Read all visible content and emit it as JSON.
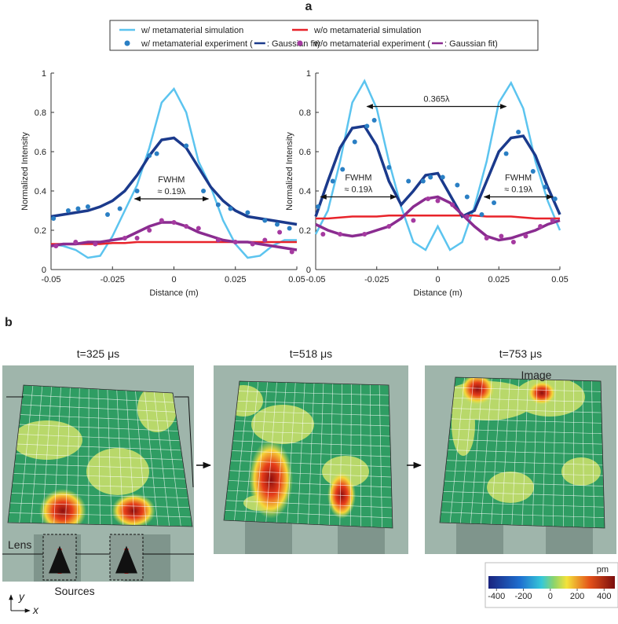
{
  "panel_a_label": "a",
  "legend": [
    {
      "label": "w/ metamaterial simulation",
      "color": "#5cc4ef",
      "marker": "line"
    },
    {
      "label": "w/o metamaterial simulation",
      "color": "#e8232a",
      "marker": "line"
    },
    {
      "label": "w/ metamaterial experiment (",
      "suffix": ": Gaussian fit)",
      "color": "#2a7fc4",
      "fit_color": "#1b3a8c",
      "marker": "dot"
    },
    {
      "label": "w/o metamaterial experiment (",
      "suffix": ": Gaussian fit)",
      "color": "#a53aa0",
      "fit_color": "#8a2c90",
      "marker": "dot"
    }
  ],
  "chart_data": [
    {
      "type": "line",
      "xlabel": "Distance (m)",
      "ylabel": "Normalized Intensity",
      "xlim": [
        -0.05,
        0.05
      ],
      "ylim": [
        0,
        1
      ],
      "xticks": [
        -0.05,
        -0.025,
        0,
        0.025,
        0.05
      ],
      "yticks": [
        0,
        0.2,
        0.4,
        0.6,
        0.8,
        1
      ],
      "x": [
        -0.05,
        -0.045,
        -0.04,
        -0.035,
        -0.03,
        -0.025,
        -0.02,
        -0.015,
        -0.01,
        -0.005,
        0,
        0.005,
        0.01,
        0.015,
        0.02,
        0.025,
        0.03,
        0.035,
        0.04,
        0.045,
        0.05
      ],
      "series": [
        {
          "type": "line",
          "color": "#5cc4ef",
          "values": [
            0.13,
            0.12,
            0.1,
            0.06,
            0.07,
            0.17,
            0.3,
            0.43,
            0.62,
            0.85,
            0.92,
            0.8,
            0.55,
            0.42,
            0.25,
            0.13,
            0.06,
            0.07,
            0.12,
            0.15,
            0.15
          ]
        },
        {
          "type": "line",
          "color": "#e8232a",
          "values": [
            0.13,
            0.13,
            0.13,
            0.13,
            0.13,
            0.135,
            0.135,
            0.14,
            0.14,
            0.14,
            0.14,
            0.14,
            0.14,
            0.14,
            0.14,
            0.14,
            0.14,
            0.14,
            0.14,
            0.14,
            0.14
          ]
        },
        {
          "type": "line",
          "color": "#1b3a8c",
          "values": [
            0.27,
            0.28,
            0.29,
            0.3,
            0.32,
            0.35,
            0.4,
            0.48,
            0.58,
            0.66,
            0.67,
            0.62,
            0.52,
            0.42,
            0.35,
            0.3,
            0.27,
            0.26,
            0.25,
            0.24,
            0.23
          ]
        },
        {
          "type": "line",
          "color": "#8a2c90",
          "values": [
            0.12,
            0.13,
            0.13,
            0.14,
            0.14,
            0.15,
            0.16,
            0.19,
            0.22,
            0.24,
            0.24,
            0.22,
            0.19,
            0.17,
            0.15,
            0.14,
            0.14,
            0.13,
            0.12,
            0.11,
            0.1
          ]
        },
        {
          "type": "scatter",
          "color": "#2a7fc4",
          "x": [
            -0.049,
            -0.043,
            -0.039,
            -0.035,
            -0.027,
            -0.022,
            -0.015,
            -0.01,
            -0.007,
            0.005,
            0.012,
            0.018,
            0.023,
            0.03,
            0.037,
            0.042,
            0.047
          ],
          "values": [
            0.26,
            0.3,
            0.31,
            0.32,
            0.28,
            0.31,
            0.4,
            0.58,
            0.59,
            0.63,
            0.4,
            0.33,
            0.31,
            0.29,
            0.25,
            0.23,
            0.21
          ]
        },
        {
          "type": "scatter",
          "color": "#a53aa0",
          "x": [
            -0.048,
            -0.04,
            -0.032,
            -0.02,
            -0.015,
            -0.01,
            -0.005,
            0,
            0.005,
            0.01,
            0.018,
            0.025,
            0.032,
            0.037,
            0.043,
            0.048
          ],
          "values": [
            0.12,
            0.14,
            0.13,
            0.16,
            0.16,
            0.2,
            0.25,
            0.24,
            0.22,
            0.21,
            0.15,
            0.14,
            0.13,
            0.15,
            0.19,
            0.09
          ]
        }
      ],
      "arrows": [
        {
          "x": [
            -0.016,
            0.014
          ],
          "y": 0.36,
          "label": [
            "FWHM",
            "≈ 0.19λ"
          ]
        }
      ]
    },
    {
      "type": "line",
      "xlabel": "Distance (m)",
      "ylabel": "Normalized Intensity",
      "xlim": [
        -0.05,
        0.05
      ],
      "ylim": [
        0,
        1
      ],
      "xticks": [
        -0.05,
        -0.025,
        0,
        0.025,
        0.05
      ],
      "yticks": [
        0,
        0.2,
        0.4,
        0.6,
        0.8,
        1
      ],
      "x": [
        -0.05,
        -0.045,
        -0.04,
        -0.035,
        -0.03,
        -0.025,
        -0.02,
        -0.015,
        -0.01,
        -0.005,
        0,
        0.005,
        0.01,
        0.015,
        0.02,
        0.025,
        0.03,
        0.035,
        0.04,
        0.045,
        0.05
      ],
      "series": [
        {
          "type": "line",
          "color": "#5cc4ef",
          "values": [
            0.18,
            0.3,
            0.55,
            0.85,
            0.96,
            0.82,
            0.55,
            0.32,
            0.14,
            0.1,
            0.22,
            0.1,
            0.14,
            0.32,
            0.55,
            0.85,
            0.95,
            0.82,
            0.55,
            0.35,
            0.2
          ]
        },
        {
          "type": "line",
          "color": "#e8232a",
          "values": [
            0.26,
            0.26,
            0.265,
            0.27,
            0.27,
            0.27,
            0.275,
            0.275,
            0.275,
            0.275,
            0.275,
            0.275,
            0.275,
            0.275,
            0.27,
            0.27,
            0.27,
            0.265,
            0.26,
            0.26,
            0.26
          ]
        },
        {
          "type": "line",
          "color": "#1b3a8c",
          "values": [
            0.27,
            0.45,
            0.62,
            0.72,
            0.73,
            0.63,
            0.45,
            0.33,
            0.4,
            0.48,
            0.49,
            0.38,
            0.27,
            0.3,
            0.45,
            0.6,
            0.67,
            0.68,
            0.58,
            0.42,
            0.28
          ]
        },
        {
          "type": "line",
          "color": "#8a2c90",
          "values": [
            0.23,
            0.2,
            0.18,
            0.17,
            0.18,
            0.2,
            0.22,
            0.26,
            0.32,
            0.36,
            0.37,
            0.34,
            0.28,
            0.22,
            0.17,
            0.15,
            0.16,
            0.18,
            0.2,
            0.23,
            0.25
          ]
        },
        {
          "type": "scatter",
          "color": "#2a7fc4",
          "x": [
            -0.049,
            -0.043,
            -0.039,
            -0.034,
            -0.029,
            -0.026,
            -0.02,
            -0.012,
            -0.006,
            -0.003,
            0.002,
            0.008,
            0.012,
            0.018,
            0.023,
            0.028,
            0.033,
            0.039,
            0.044,
            0.048
          ],
          "values": [
            0.32,
            0.45,
            0.51,
            0.65,
            0.73,
            0.76,
            0.52,
            0.45,
            0.45,
            0.47,
            0.47,
            0.43,
            0.37,
            0.28,
            0.34,
            0.59,
            0.7,
            0.5,
            0.42,
            0.36
          ]
        },
        {
          "type": "scatter",
          "color": "#a53aa0",
          "x": [
            -0.047,
            -0.04,
            -0.03,
            -0.02,
            -0.01,
            -0.004,
            0,
            0.006,
            0.012,
            0.02,
            0.026,
            0.031,
            0.036,
            0.042,
            0.047
          ],
          "values": [
            0.18,
            0.18,
            0.18,
            0.22,
            0.25,
            0.36,
            0.35,
            0.33,
            0.27,
            0.16,
            0.17,
            0.14,
            0.17,
            0.22,
            0.25
          ]
        }
      ],
      "arrows": [
        {
          "x": [
            -0.048,
            -0.017
          ],
          "y": 0.37,
          "label": [
            "FWHM",
            "≈ 0.19λ"
          ]
        },
        {
          "x": [
            -0.029,
            0.028
          ],
          "y": 0.83,
          "label": [
            "0.365λ"
          ]
        },
        {
          "x": [
            0.019,
            0.047
          ],
          "y": 0.37,
          "label": [
            "FWHM",
            "≈ 0.19λ"
          ]
        }
      ]
    }
  ],
  "panel_b": {
    "label": "b",
    "frames": [
      "t=325 μs",
      "t=518 μs",
      "t=753 μs"
    ],
    "lens": "Lens",
    "sources": "Sources",
    "image": "Image",
    "axis_y": "y",
    "axis_x": "x",
    "colorbar": {
      "unit": "pm",
      "lim": [
        -460,
        480
      ],
      "ticks": [
        -400,
        -200,
        0,
        200,
        400
      ]
    }
  }
}
